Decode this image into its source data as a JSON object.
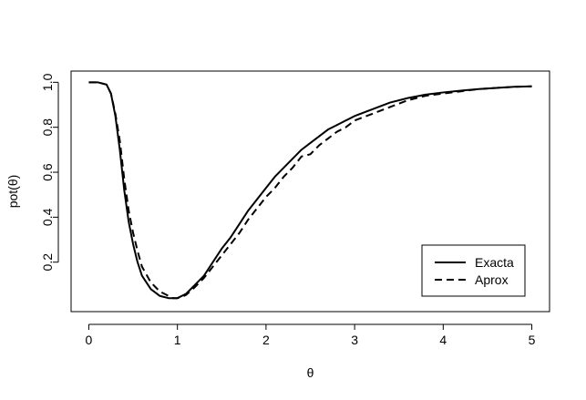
{
  "chart_data": {
    "type": "line",
    "title": "",
    "xlabel": "θ",
    "ylabel": "pot(θ)",
    "xlim": [
      -0.2,
      5.2
    ],
    "ylim": [
      -0.02,
      1.05
    ],
    "x_ticks": [
      0,
      1,
      2,
      3,
      4,
      5
    ],
    "x_tick_labels": [
      "0",
      "1",
      "2",
      "3",
      "4",
      "5"
    ],
    "y_ticks": [
      0.2,
      0.4,
      0.6,
      0.8,
      1.0
    ],
    "y_tick_labels": [
      "0.2",
      "0.4",
      "0.6",
      "0.8",
      "1.0"
    ],
    "grid": false,
    "legend_position": "bottom-right",
    "series": [
      {
        "name": "Exacta",
        "line_style": "solid",
        "color": "#000000",
        "x": [
          0.0,
          0.1,
          0.2,
          0.25,
          0.3,
          0.35,
          0.4,
          0.45,
          0.5,
          0.55,
          0.6,
          0.7,
          0.8,
          0.9,
          0.95,
          1.0,
          1.05,
          1.1,
          1.2,
          1.3,
          1.4,
          1.5,
          1.6,
          1.7,
          1.8,
          1.9,
          2.0,
          2.1,
          2.2,
          2.3,
          2.4,
          2.5,
          2.6,
          2.7,
          2.8,
          2.9,
          3.0,
          3.2,
          3.4,
          3.6,
          3.8,
          4.0,
          4.2,
          4.4,
          4.6,
          4.8,
          5.0
        ],
        "y": [
          1.0,
          1.0,
          0.99,
          0.95,
          0.85,
          0.7,
          0.52,
          0.38,
          0.28,
          0.2,
          0.14,
          0.08,
          0.05,
          0.04,
          0.04,
          0.04,
          0.05,
          0.06,
          0.1,
          0.14,
          0.2,
          0.26,
          0.31,
          0.37,
          0.43,
          0.48,
          0.53,
          0.58,
          0.62,
          0.66,
          0.7,
          0.73,
          0.76,
          0.79,
          0.81,
          0.83,
          0.85,
          0.88,
          0.91,
          0.93,
          0.945,
          0.955,
          0.963,
          0.97,
          0.975,
          0.98,
          0.982
        ]
      },
      {
        "name": "Aprox",
        "line_style": "dashed",
        "color": "#000000",
        "x": [
          0.0,
          0.1,
          0.2,
          0.25,
          0.3,
          0.35,
          0.4,
          0.45,
          0.5,
          0.55,
          0.6,
          0.7,
          0.8,
          0.9,
          0.95,
          1.0,
          1.05,
          1.1,
          1.2,
          1.3,
          1.4,
          1.5,
          1.6,
          1.7,
          1.8,
          1.9,
          2.0,
          2.1,
          2.2,
          2.3,
          2.4,
          2.5,
          2.6,
          2.7,
          2.8,
          2.9,
          3.0,
          3.2,
          3.4,
          3.6,
          3.8,
          4.0,
          4.2,
          4.4,
          4.6,
          4.8,
          5.0
        ],
        "y": [
          1.0,
          1.0,
          0.99,
          0.95,
          0.86,
          0.74,
          0.57,
          0.43,
          0.33,
          0.25,
          0.18,
          0.11,
          0.07,
          0.05,
          0.04,
          0.04,
          0.045,
          0.055,
          0.09,
          0.13,
          0.18,
          0.23,
          0.28,
          0.33,
          0.39,
          0.44,
          0.49,
          0.53,
          0.58,
          0.62,
          0.67,
          0.68,
          0.72,
          0.75,
          0.78,
          0.8,
          0.83,
          0.86,
          0.89,
          0.92,
          0.94,
          0.95,
          0.96,
          0.97,
          0.975,
          0.98,
          0.982
        ]
      }
    ]
  }
}
